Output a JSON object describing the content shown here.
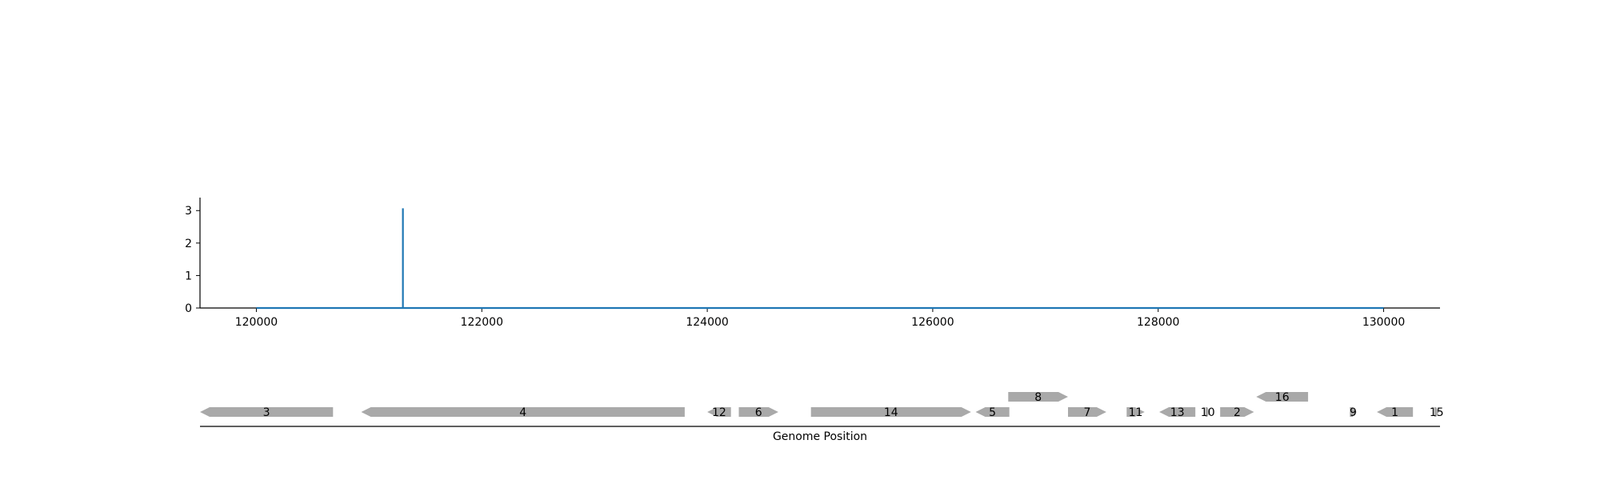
{
  "chart_data": [
    {
      "type": "line",
      "x": [
        120000,
        121300,
        121300,
        121300,
        130000
      ],
      "y": [
        0,
        0,
        3.07,
        0,
        0
      ],
      "xlim": [
        119500,
        130500
      ],
      "ylim": [
        0,
        3.4
      ],
      "xticks": [
        120000,
        122000,
        124000,
        126000,
        128000,
        130000
      ],
      "xtick_labels": [
        "120000",
        "122000",
        "124000",
        "126000",
        "128000",
        "130000"
      ],
      "yticks": [
        0,
        1,
        2,
        3
      ],
      "ytick_labels": [
        "0",
        "1",
        "2",
        "3"
      ],
      "line_color": "#1f77b4",
      "grid": false
    },
    {
      "type": "gene_map",
      "xlabel": "Genome Position",
      "feature_color": "#a9a9a9",
      "features": [
        {
          "label": "3",
          "start": 119500,
          "end": 120680,
          "strand": -1,
          "track": 0
        },
        {
          "label": "4",
          "start": 120930,
          "end": 123800,
          "strand": -1,
          "track": 0
        },
        {
          "label": "12",
          "start": 124000,
          "end": 124210,
          "strand": -1,
          "track": 0
        },
        {
          "label": "6",
          "start": 124280,
          "end": 124630,
          "strand": 1,
          "track": 0
        },
        {
          "label": "14",
          "start": 124920,
          "end": 126340,
          "strand": 1,
          "track": 0
        },
        {
          "label": "5",
          "start": 126380,
          "end": 126680,
          "strand": -1,
          "track": 0
        },
        {
          "label": "8",
          "start": 126670,
          "end": 127200,
          "strand": 1,
          "track": 1
        },
        {
          "label": "7",
          "start": 127200,
          "end": 127540,
          "strand": 1,
          "track": 0
        },
        {
          "label": "11",
          "start": 127720,
          "end": 127880,
          "strand": 1,
          "track": 0
        },
        {
          "label": "13",
          "start": 128010,
          "end": 128330,
          "strand": -1,
          "track": 0
        },
        {
          "label": "10",
          "start": 128420,
          "end": 128460,
          "strand": 1,
          "track": 0
        },
        {
          "label": "2",
          "start": 128550,
          "end": 128850,
          "strand": 1,
          "track": 0
        },
        {
          "label": "16",
          "start": 128870,
          "end": 129330,
          "strand": -1,
          "track": 1
        },
        {
          "label": "9",
          "start": 129700,
          "end": 129760,
          "strand": 1,
          "track": 0
        },
        {
          "label": "1",
          "start": 129940,
          "end": 130260,
          "strand": -1,
          "track": 0
        },
        {
          "label": "15",
          "start": 130450,
          "end": 130490,
          "strand": 1,
          "track": 0
        }
      ]
    }
  ]
}
